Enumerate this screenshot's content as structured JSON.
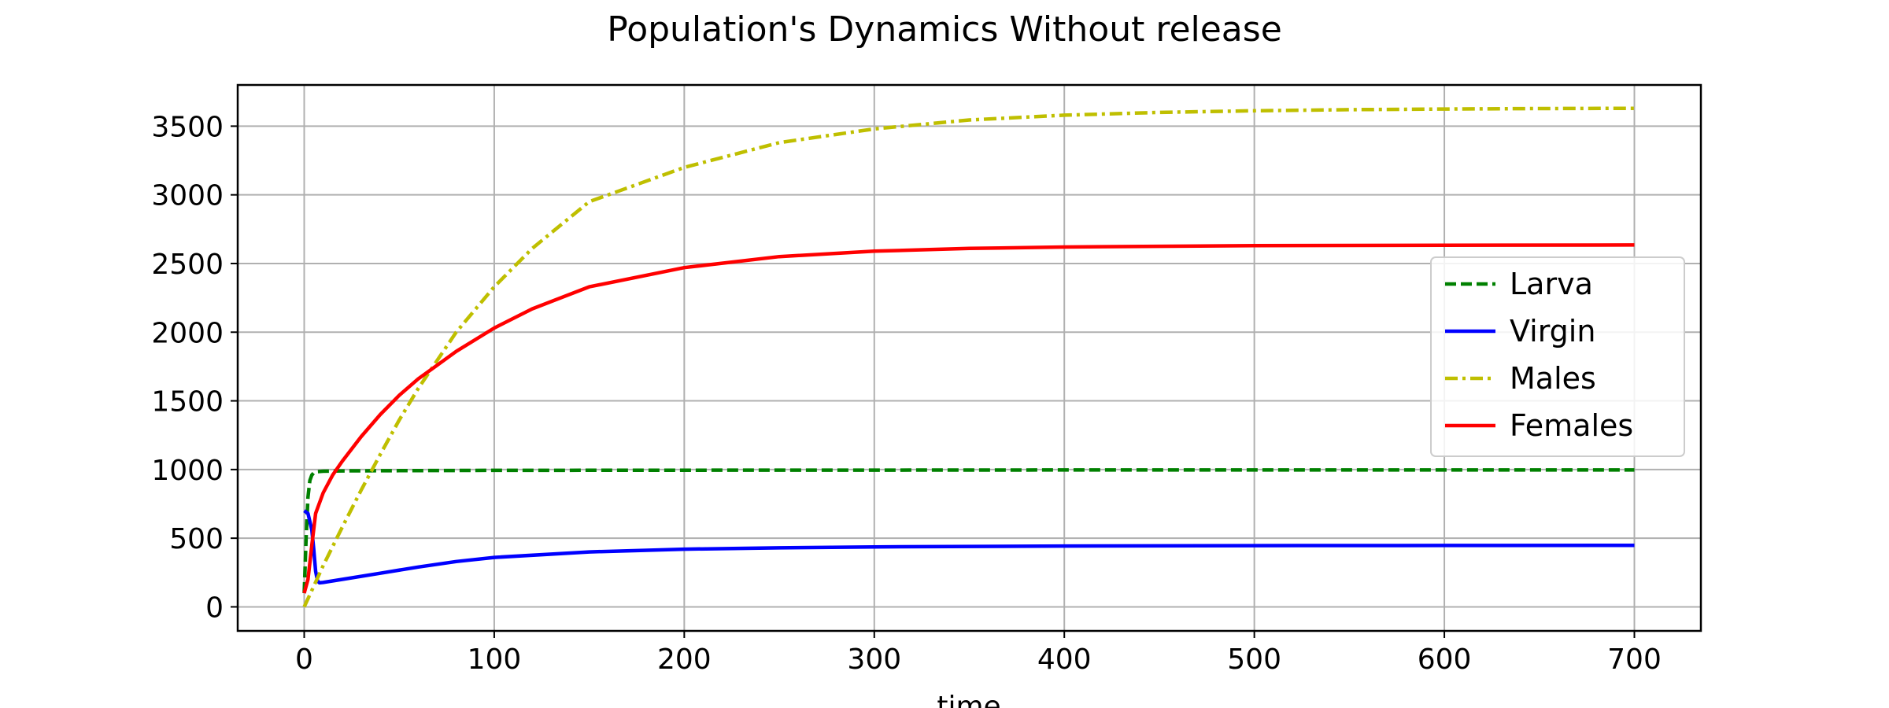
{
  "chart_data": {
    "type": "line",
    "title": "Population's Dynamics Without release",
    "xlabel": "time",
    "ylabel": "",
    "xlim": [
      -35,
      735
    ],
    "ylim": [
      -175,
      3800
    ],
    "xticks": [
      0,
      100,
      200,
      300,
      400,
      500,
      600,
      700
    ],
    "yticks": [
      0,
      500,
      1000,
      1500,
      2000,
      2500,
      3000,
      3500
    ],
    "grid": true,
    "legend_position": "center-right",
    "series": [
      {
        "name": "Larva",
        "color": "#008000",
        "dash": "dashed",
        "x": [
          0,
          1,
          2,
          3,
          4,
          5,
          7,
          10,
          20,
          50,
          100,
          200,
          300,
          400,
          500,
          600,
          700
        ],
        "y": [
          100,
          500,
          800,
          920,
          960,
          975,
          985,
          988,
          990,
          992,
          994,
          995,
          996,
          997,
          997,
          997,
          997
        ]
      },
      {
        "name": "Virgin",
        "color": "#0000ff",
        "dash": "solid",
        "x": [
          0,
          2,
          4,
          5,
          6,
          7,
          8,
          10,
          20,
          40,
          60,
          80,
          100,
          150,
          200,
          250,
          300,
          400,
          500,
          600,
          700
        ],
        "y": [
          700,
          680,
          560,
          420,
          260,
          190,
          175,
          178,
          200,
          245,
          290,
          330,
          360,
          400,
          420,
          430,
          437,
          443,
          446,
          447,
          448
        ]
      },
      {
        "name": "Males",
        "color": "#bfbf00",
        "dash": "dashdot",
        "x": [
          0,
          5,
          10,
          20,
          30,
          40,
          50,
          60,
          80,
          100,
          120,
          150,
          200,
          250,
          300,
          350,
          400,
          450,
          500,
          550,
          600,
          650,
          700
        ],
        "y": [
          0,
          150,
          300,
          580,
          850,
          1110,
          1360,
          1590,
          2000,
          2330,
          2610,
          2950,
          3200,
          3380,
          3480,
          3545,
          3580,
          3600,
          3612,
          3620,
          3625,
          3628,
          3630
        ]
      },
      {
        "name": "Females",
        "color": "#ff0000",
        "dash": "solid",
        "x": [
          0,
          2,
          4,
          6,
          10,
          15,
          20,
          30,
          40,
          50,
          60,
          70,
          80,
          100,
          120,
          150,
          200,
          250,
          300,
          350,
          400,
          500,
          600,
          700
        ],
        "y": [
          100,
          200,
          450,
          680,
          830,
          960,
          1060,
          1240,
          1400,
          1540,
          1660,
          1760,
          1860,
          2030,
          2170,
          2330,
          2470,
          2550,
          2590,
          2610,
          2620,
          2630,
          2633,
          2635
        ]
      }
    ]
  }
}
